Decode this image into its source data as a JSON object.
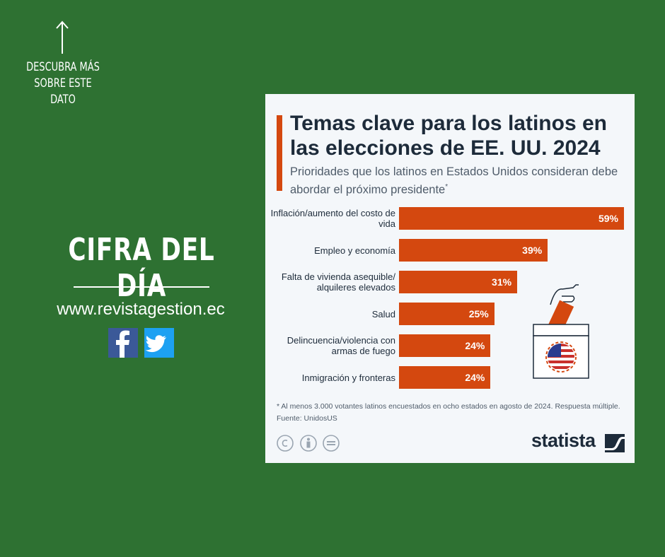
{
  "sidebar": {
    "cta_lines": [
      "DESCUBRA MÁS",
      "SOBRE ESTE",
      "DATO"
    ],
    "headline": "CIFRA DEL DÍA",
    "website": "www.revistagestion.ec"
  },
  "chart_data": {
    "type": "bar",
    "orientation": "horizontal",
    "title": "Temas clave para los latinos en las elecciones de EE. UU. 2024",
    "subtitle": "Prioridades que los latinos en Estados Unidos consideran debe abordar el próximo presidente",
    "subtitle_mark": "*",
    "categories": [
      "Inflación/aumento del costo de vida",
      "Empleo y economía",
      "Falta de vivienda asequible/ alquileres elevados",
      "Salud",
      "Delincuencia/violencia con armas de fuego",
      "Inmigración y fronteras"
    ],
    "values": [
      59,
      39,
      31,
      25,
      24,
      24
    ],
    "value_labels": [
      "59%",
      "39%",
      "31%",
      "25%",
      "24%",
      "24%"
    ],
    "color": "#d4480f",
    "note": "* Al menos 3.000 votantes latinos encuestados en ocho estados en agosto de 2024. Respuesta múltiple.",
    "source": "Fuente: UnidosUS",
    "brand": "statista"
  }
}
